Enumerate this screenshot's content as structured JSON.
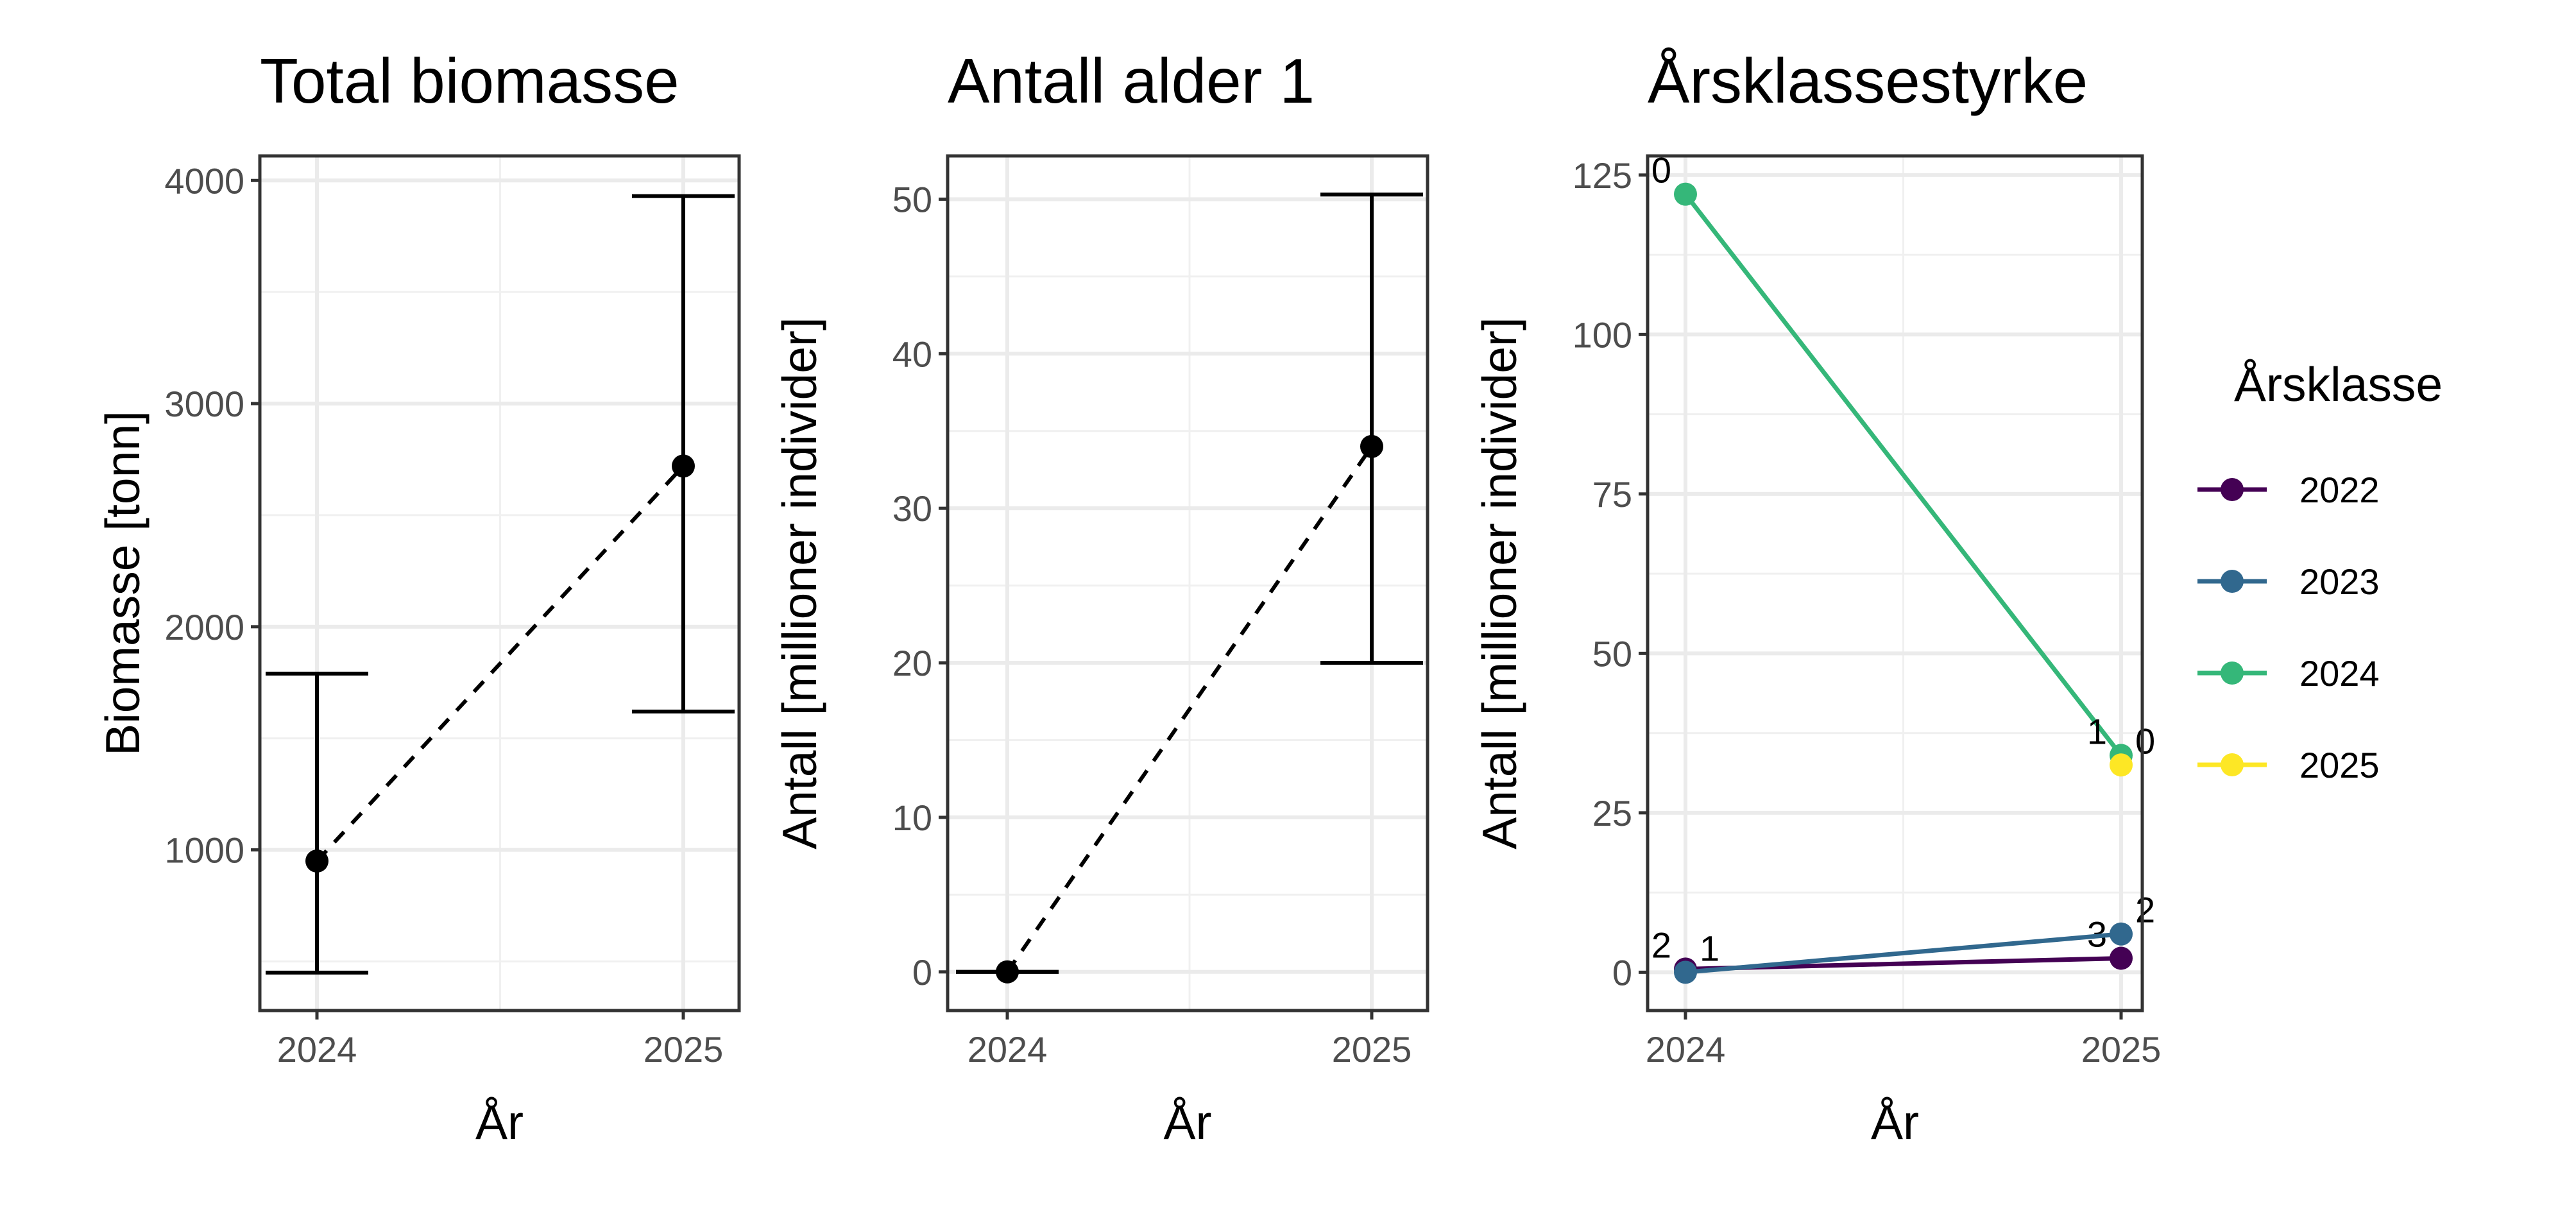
{
  "chart_data": [
    {
      "type": "scatter",
      "title": "Total biomasse",
      "xlabel": "År",
      "ylabel": "Biomasse [tonn]",
      "x_ticks": [
        "2024",
        "2025"
      ],
      "y_ticks": [
        1000,
        2000,
        3000,
        4000
      ],
      "ylim": [
        280,
        4110
      ],
      "grid": true,
      "points": [
        {
          "x": "2024",
          "y": 950,
          "lower": 450,
          "upper": 1790
        },
        {
          "x": "2025",
          "y": 2720,
          "lower": 1620,
          "upper": 3930
        }
      ],
      "connector": "dashed"
    },
    {
      "type": "scatter",
      "title": "Antall alder 1",
      "xlabel": "År",
      "ylabel": "Antall [millioner individer]",
      "x_ticks": [
        "2024",
        "2025"
      ],
      "y_ticks": [
        0,
        10,
        20,
        30,
        40,
        50
      ],
      "ylim": [
        -2.5,
        52.8
      ],
      "grid": true,
      "points": [
        {
          "x": "2024",
          "y": 0,
          "lower": 0,
          "upper": 0
        },
        {
          "x": "2025",
          "y": 34,
          "lower": 20,
          "upper": 50.3
        }
      ],
      "connector": "dashed"
    },
    {
      "type": "line",
      "title": "Årsklassestyrke",
      "xlabel": "År",
      "ylabel": "Antall [millioner individer]",
      "x_ticks": [
        "2024",
        "2025"
      ],
      "y_ticks": [
        0,
        25,
        50,
        75,
        100,
        125
      ],
      "ylim": [
        -6,
        128
      ],
      "grid": true,
      "legend": {
        "title": "Årsklasse",
        "placement": "right"
      },
      "series": [
        {
          "name": "2022",
          "color": "#440154",
          "points": [
            {
              "x": "2024",
              "y": 0.5,
              "label": "2"
            },
            {
              "x": "2025",
              "y": 2.2,
              "label": "3"
            }
          ]
        },
        {
          "name": "2023",
          "color": "#31688E",
          "points": [
            {
              "x": "2024",
              "y": 0,
              "label": "1"
            },
            {
              "x": "2025",
              "y": 6,
              "label": "2"
            }
          ]
        },
        {
          "name": "2024",
          "color": "#35B779",
          "points": [
            {
              "x": "2024",
              "y": 122,
              "label": "0"
            },
            {
              "x": "2025",
              "y": 34,
              "label": "1"
            }
          ]
        },
        {
          "name": "2025",
          "color": "#FDE725",
          "points": [
            {
              "x": "2025",
              "y": 32.5,
              "label": "0"
            }
          ]
        }
      ]
    }
  ]
}
